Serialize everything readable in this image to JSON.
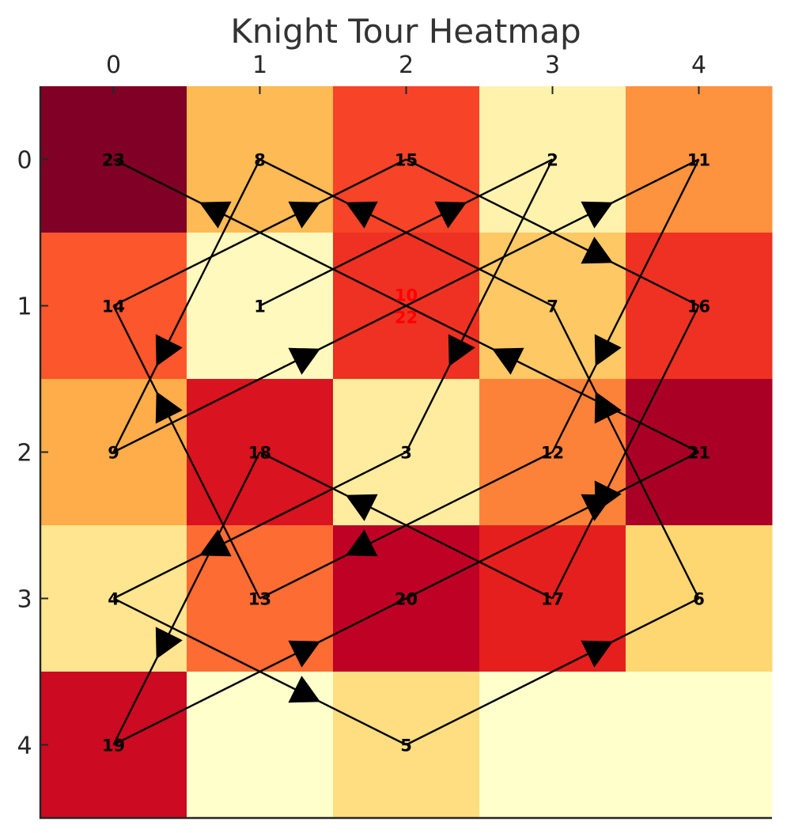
{
  "chart_data": {
    "type": "heatmap",
    "title": "Knight Tour Heatmap",
    "x_ticks": [
      "0",
      "1",
      "2",
      "3",
      "4"
    ],
    "y_ticks": [
      "0",
      "1",
      "2",
      "3",
      "4"
    ],
    "x_axis_position": "top",
    "colormap": "YlOrRd",
    "grid": false,
    "values": [
      [
        23,
        8,
        15,
        2,
        11
      ],
      [
        14,
        1,
        16,
        7,
        16
      ],
      [
        9,
        18,
        3,
        12,
        21
      ],
      [
        4,
        13,
        20,
        17,
        6
      ],
      [
        19,
        0,
        5,
        0,
        0
      ]
    ],
    "cell_labels": [
      {
        "row": 0,
        "col": 0,
        "text": "23",
        "color": "#000000"
      },
      {
        "row": 0,
        "col": 1,
        "text": "8",
        "color": "#000000"
      },
      {
        "row": 0,
        "col": 2,
        "text": "15",
        "color": "#000000"
      },
      {
        "row": 0,
        "col": 3,
        "text": "2",
        "color": "#000000"
      },
      {
        "row": 0,
        "col": 4,
        "text": "11",
        "color": "#000000"
      },
      {
        "row": 1,
        "col": 0,
        "text": "14",
        "color": "#000000"
      },
      {
        "row": 1,
        "col": 1,
        "text": "1",
        "color": "#000000"
      },
      {
        "row": 1,
        "col": 2,
        "text": "10",
        "color": "#ff0000",
        "line": 0
      },
      {
        "row": 1,
        "col": 2,
        "text": "22",
        "color": "#ff0000",
        "line": 1
      },
      {
        "row": 1,
        "col": 3,
        "text": "7",
        "color": "#000000"
      },
      {
        "row": 1,
        "col": 4,
        "text": "16",
        "color": "#000000"
      },
      {
        "row": 2,
        "col": 0,
        "text": "9",
        "color": "#000000"
      },
      {
        "row": 2,
        "col": 1,
        "text": "18",
        "color": "#000000"
      },
      {
        "row": 2,
        "col": 2,
        "text": "3",
        "color": "#000000"
      },
      {
        "row": 2,
        "col": 3,
        "text": "12",
        "color": "#000000"
      },
      {
        "row": 2,
        "col": 4,
        "text": "21",
        "color": "#000000"
      },
      {
        "row": 3,
        "col": 0,
        "text": "4",
        "color": "#000000"
      },
      {
        "row": 3,
        "col": 1,
        "text": "13",
        "color": "#000000"
      },
      {
        "row": 3,
        "col": 2,
        "text": "20",
        "color": "#000000"
      },
      {
        "row": 3,
        "col": 3,
        "text": "17",
        "color": "#000000"
      },
      {
        "row": 3,
        "col": 4,
        "text": "6",
        "color": "#000000"
      },
      {
        "row": 4,
        "col": 0,
        "text": "19",
        "color": "#000000"
      },
      {
        "row": 4,
        "col": 2,
        "text": "5",
        "color": "#000000"
      }
    ],
    "path": [
      [
        1,
        1
      ],
      [
        0,
        3
      ],
      [
        2,
        2
      ],
      [
        3,
        0
      ],
      [
        4,
        2
      ],
      [
        3,
        4
      ],
      [
        1,
        3
      ],
      [
        0,
        1
      ],
      [
        2,
        0
      ],
      [
        1,
        2
      ],
      [
        0,
        4
      ],
      [
        2,
        3
      ],
      [
        3,
        1
      ],
      [
        1,
        0
      ],
      [
        0,
        2
      ],
      [
        1,
        4
      ],
      [
        3,
        3
      ],
      [
        2,
        1
      ],
      [
        4,
        0
      ],
      [
        3,
        2
      ],
      [
        2,
        4
      ],
      [
        1,
        2
      ],
      [
        0,
        0
      ]
    ]
  }
}
